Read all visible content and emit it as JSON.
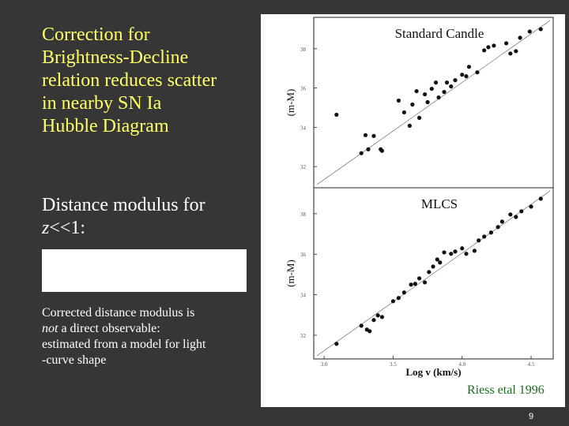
{
  "slide": {
    "heading_lines": [
      "Correction for",
      "Brightness-Decline",
      "relation reduces scatter",
      "in nearby SN Ia",
      "Hubble Diagram"
    ],
    "subheading_line1": "Distance modulus for",
    "subheading_var": "z",
    "subheading_rest": "<<1:",
    "note": {
      "line1": "Corrected distance modulus is",
      "emphasis": "not",
      "line2": " a direct observable:",
      "line3": "estimated from a model for light",
      "line4": "-curve shape"
    },
    "credit": "Riess etal 1996",
    "page_number": "9"
  },
  "chart_data": [
    {
      "type": "scatter",
      "title": "Standard Candle",
      "ylabel": "(m-M)",
      "x": [
        3.09,
        3.27,
        3.32,
        3.36,
        3.41,
        3.42,
        3.3,
        3.54,
        3.58,
        3.62,
        3.64,
        3.67,
        3.69,
        3.73,
        3.75,
        3.78,
        3.81,
        3.83,
        3.87,
        3.89,
        3.92,
        3.95,
        4.0,
        4.03,
        4.05,
        4.11,
        4.16,
        4.19,
        4.23,
        4.32,
        4.35,
        4.39,
        4.42,
        4.49,
        4.57
      ],
      "values": [
        34.64,
        32.68,
        32.88,
        33.56,
        32.88,
        32.8,
        33.6,
        35.36,
        34.76,
        34.08,
        35.16,
        35.84,
        34.48,
        35.68,
        35.28,
        35.96,
        36.28,
        35.52,
        35.8,
        36.28,
        36.08,
        36.4,
        36.68,
        36.6,
        37.08,
        36.8,
        37.92,
        38.08,
        38.16,
        38.28,
        37.76,
        37.88,
        38.56,
        38.88,
        39.0
      ],
      "color": "#111111",
      "xlim": [
        2.925,
        4.66
      ],
      "ylim": [
        30.92,
        39.6
      ],
      "yticks": [
        38,
        36,
        34,
        32
      ]
    },
    {
      "type": "scatter",
      "title": "MLCS",
      "ylabel": "(m-M)",
      "xlabel": "Log v (km/s)",
      "x": [
        3.09,
        3.27,
        3.31,
        3.36,
        3.39,
        3.42,
        3.33,
        3.5,
        3.54,
        3.58,
        3.63,
        3.66,
        3.69,
        3.73,
        3.76,
        3.79,
        3.82,
        3.84,
        3.87,
        3.92,
        3.95,
        4.0,
        4.03,
        4.09,
        4.12,
        4.16,
        4.21,
        4.26,
        4.29,
        4.35,
        4.39,
        4.43,
        4.5,
        4.57
      ],
      "values": [
        31.58,
        32.47,
        32.28,
        32.75,
        32.98,
        32.9,
        32.2,
        33.68,
        33.84,
        34.11,
        34.5,
        34.54,
        34.81,
        34.61,
        35.12,
        35.39,
        35.74,
        35.59,
        36.09,
        36.02,
        36.13,
        36.29,
        36.02,
        36.17,
        36.68,
        36.87,
        37.07,
        37.34,
        37.61,
        37.96,
        37.84,
        38.12,
        38.35,
        38.74
      ],
      "color": "#111111",
      "xlim": [
        2.925,
        4.66
      ],
      "ylim": [
        30.83,
        39.28
      ],
      "yticks": [
        38,
        36,
        34,
        32
      ],
      "xticks": [
        {
          "value": 3,
          "label": "3.0"
        },
        3.5,
        {
          "value": 4,
          "label": "4.0"
        },
        4.5
      ]
    }
  ]
}
